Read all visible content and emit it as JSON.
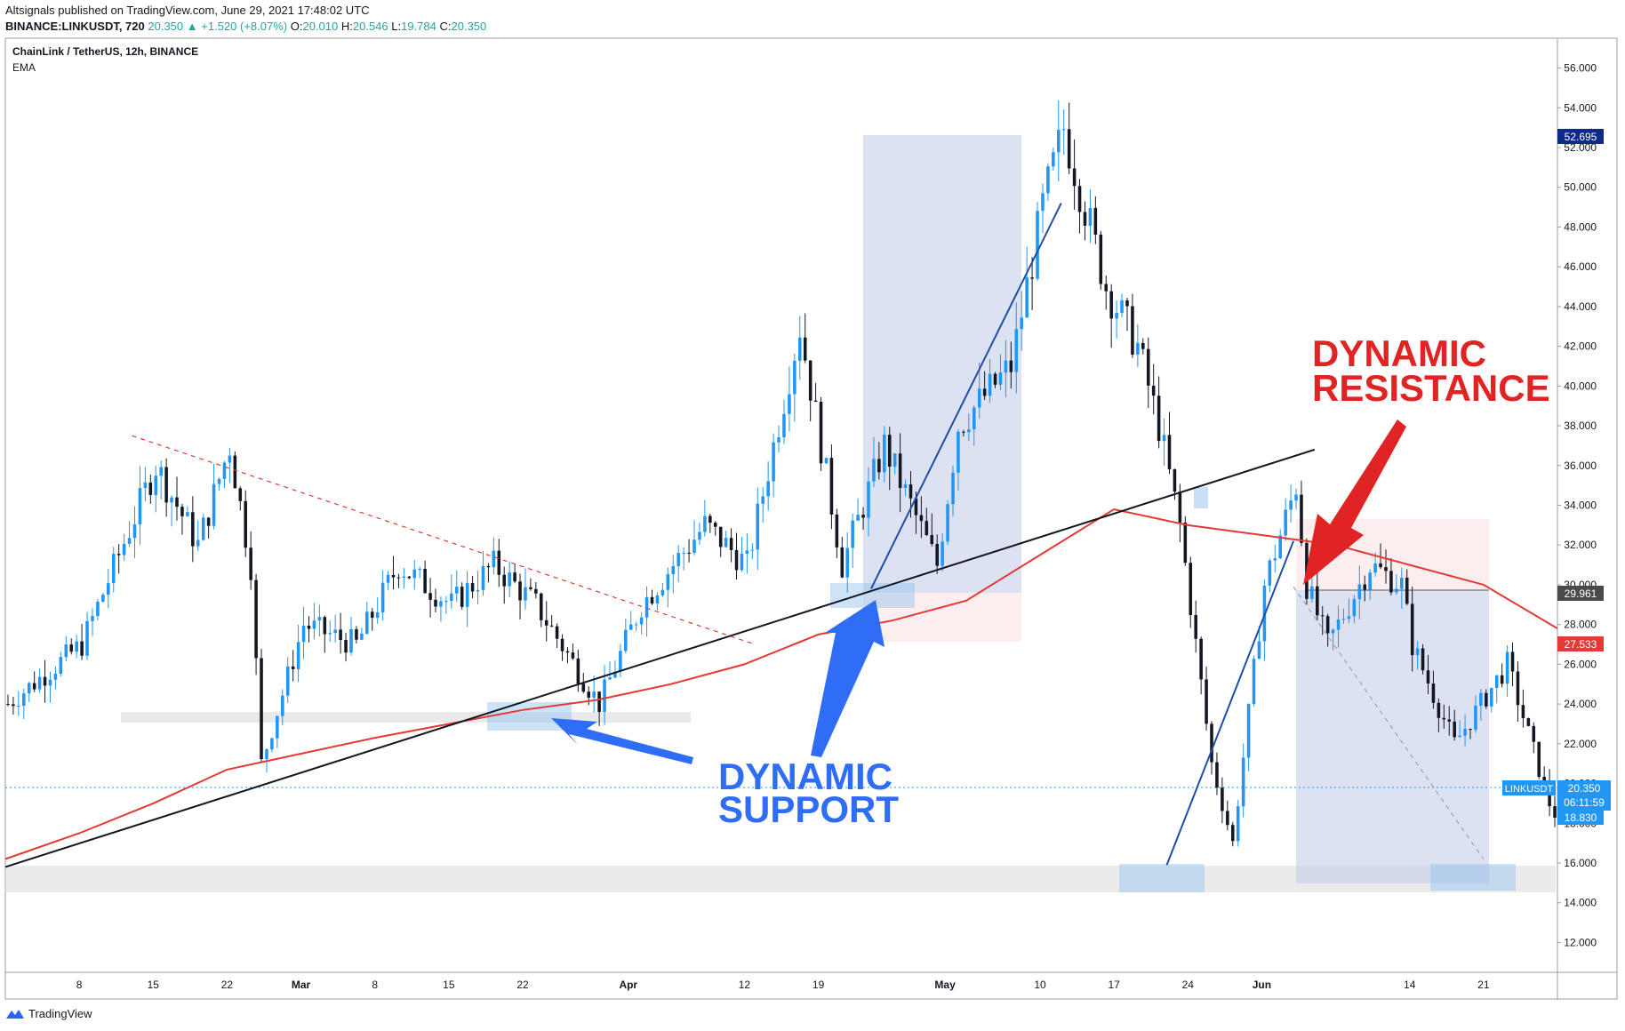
{
  "header": {
    "author_line": "Altsignals published on TradingView.com, June 29, 2021 17:48:02 UTC",
    "symbol_line": "BINANCE:LINKUSDT, 720",
    "last": "20.350",
    "change_arrow": "▲",
    "change": "+1.520 (+8.07%)",
    "o_label": "O:",
    "o": "20.010",
    "h_label": "H:",
    "h": "20.546",
    "l_label": "L:",
    "l": "19.784",
    "c_label": "C:",
    "c": "20.350"
  },
  "pane": {
    "title": "ChainLink / TetherUS, 12h, BINANCE",
    "indicator": "EMA"
  },
  "footer": {
    "brand": "TradingView"
  },
  "colors": {
    "up": "#2196f3",
    "down": "#131722",
    "ema": "#e53935",
    "support_annotation": "#2962ff",
    "resistance_annotation": "#e02424",
    "price_tag": "#2196f3",
    "high_tag": "#0d2a8a"
  },
  "chart_data": {
    "type": "candlestick",
    "title": "ChainLink / TetherUS, 12h, BINANCE",
    "ylim": [
      10.5,
      57.5
    ],
    "y_ticks": [
      "12.000",
      "14.000",
      "16.000",
      "18.000",
      "20.000",
      "22.000",
      "24.000",
      "26.000",
      "28.000",
      "30.000",
      "32.000",
      "34.000",
      "36.000",
      "38.000",
      "40.000",
      "42.000",
      "44.000",
      "46.000",
      "48.000",
      "50.000",
      "52.000",
      "54.000",
      "56.000"
    ],
    "x_ticks": [
      "8",
      "15",
      "22",
      "Mar",
      "8",
      "15",
      "22",
      "Apr",
      "12",
      "19",
      "May",
      "10",
      "17",
      "24",
      "Jun",
      "14",
      "21"
    ],
    "x_tick_days": [
      7,
      14,
      21,
      28,
      35,
      42,
      49,
      59,
      70,
      77,
      89,
      98,
      105,
      112,
      119,
      133,
      140
    ],
    "x_range_days": [
      0,
      147
    ],
    "x_axis_note": "days since Feb 1, 2021",
    "price_labels": [
      {
        "name": "high",
        "value": "52.695"
      },
      {
        "name": "level",
        "value": "29.961"
      },
      {
        "name": "ema",
        "value": "27.533"
      },
      {
        "name": "symbol",
        "value": "LINKUSDT"
      },
      {
        "name": "last",
        "value": "20.350"
      },
      {
        "name": "countdown",
        "value": "06:11:59"
      },
      {
        "name": "low_level",
        "value": "18.830"
      }
    ],
    "annotations": [
      {
        "text_line1": "DYNAMIC",
        "text_line2": "SUPPORT"
      },
      {
        "text_line1": "DYNAMIC",
        "text_line2": "RESISTANCE"
      }
    ],
    "keypoints": [
      [
        0,
        24
      ],
      [
        7,
        27
      ],
      [
        14,
        36
      ],
      [
        18,
        32
      ],
      [
        21,
        37
      ],
      [
        23,
        31
      ],
      [
        24,
        21
      ],
      [
        28,
        28
      ],
      [
        33,
        27
      ],
      [
        37,
        31
      ],
      [
        42,
        29
      ],
      [
        46,
        31
      ],
      [
        50,
        29
      ],
      [
        56,
        24
      ],
      [
        60,
        29
      ],
      [
        66,
        33
      ],
      [
        70,
        31
      ],
      [
        75,
        43
      ],
      [
        79,
        31
      ],
      [
        83,
        37
      ],
      [
        88,
        31
      ],
      [
        90,
        38
      ],
      [
        95,
        41
      ],
      [
        98,
        49
      ],
      [
        100,
        53
      ],
      [
        104,
        45
      ],
      [
        107,
        42
      ],
      [
        109,
        38
      ],
      [
        111,
        33
      ],
      [
        114,
        21
      ],
      [
        116,
        17
      ],
      [
        119,
        30
      ],
      [
        122,
        35
      ],
      [
        123,
        30
      ],
      [
        125,
        27
      ],
      [
        129,
        31
      ],
      [
        132,
        30
      ],
      [
        133,
        27
      ],
      [
        137,
        22
      ],
      [
        142,
        26
      ],
      [
        146,
        19
      ],
      [
        149,
        16
      ],
      [
        150,
        18
      ],
      [
        151,
        16
      ],
      [
        153,
        20
      ]
    ],
    "ema_points": [
      [
        0,
        16.2
      ],
      [
        7,
        17.5
      ],
      [
        14,
        19
      ],
      [
        21,
        20.7
      ],
      [
        28,
        21.5
      ],
      [
        35,
        22.3
      ],
      [
        42,
        23
      ],
      [
        49,
        23.7
      ],
      [
        56,
        24.2
      ],
      [
        63,
        25
      ],
      [
        70,
        26
      ],
      [
        77,
        27.5
      ],
      [
        84,
        28.2
      ],
      [
        91,
        29.2
      ],
      [
        98,
        31.5
      ],
      [
        105,
        33.8
      ],
      [
        112,
        33
      ],
      [
        119,
        32.5
      ],
      [
        126,
        32
      ],
      [
        133,
        31
      ],
      [
        140,
        30
      ],
      [
        147,
        27.8
      ]
    ],
    "trendlines": [
      {
        "name": "long support",
        "from": [
          0,
          15.8
        ],
        "to": [
          124,
          36.8
        ]
      },
      {
        "name": "descending resistance (dashed)",
        "from": [
          12,
          37.5
        ],
        "to": [
          71,
          27
        ]
      },
      {
        "name": "steep rise",
        "from": [
          82,
          29.8
        ],
        "to": [
          100,
          49.2
        ]
      },
      {
        "name": "steep rise 2",
        "from": [
          110,
          15.9
        ],
        "to": [
          122,
          32.2
        ]
      },
      {
        "name": "drop path (dashed)",
        "from": [
          122,
          29.9
        ],
        "to": [
          140,
          16.2
        ]
      }
    ]
  }
}
